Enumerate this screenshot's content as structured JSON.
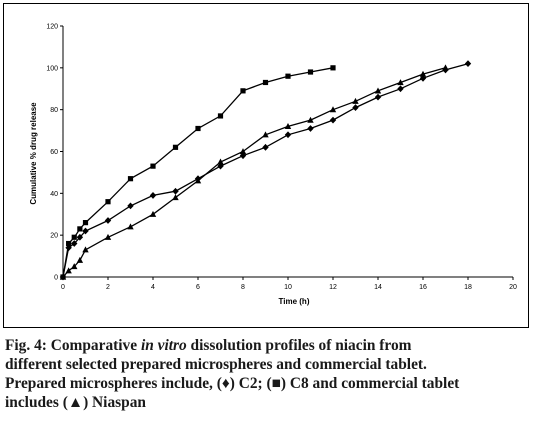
{
  "chart_data": {
    "type": "line",
    "xlabel": "Time (h)",
    "ylabel": "Cumulative % drug release",
    "xlim": [
      0,
      20
    ],
    "ylim": [
      0,
      120
    ],
    "x_ticks": [
      0,
      2,
      4,
      6,
      8,
      10,
      12,
      14,
      16,
      18,
      20
    ],
    "y_ticks": [
      0,
      20,
      40,
      60,
      80,
      100,
      120
    ],
    "grid": false,
    "series": [
      {
        "name": "C2",
        "marker": "diamond",
        "x": [
          0,
          0.25,
          0.5,
          0.75,
          1,
          2,
          3,
          4,
          5,
          6,
          7,
          8,
          9,
          10,
          11,
          12,
          13,
          14,
          15,
          16,
          17,
          18
        ],
        "y": [
          0,
          14,
          16,
          19,
          22,
          27,
          34,
          39,
          41,
          47,
          53,
          58,
          62,
          68,
          71,
          75,
          81,
          86,
          90,
          95,
          99,
          102
        ]
      },
      {
        "name": "C8",
        "marker": "square",
        "x": [
          0,
          0.25,
          0.5,
          0.75,
          1,
          2,
          3,
          4,
          5,
          6,
          7,
          8,
          9,
          10,
          11,
          12
        ],
        "y": [
          0,
          16,
          19,
          23,
          26,
          36,
          47,
          53,
          62,
          71,
          77,
          89,
          93,
          96,
          98,
          100
        ]
      },
      {
        "name": "Niaspan",
        "marker": "triangle",
        "x": [
          0,
          0.25,
          0.5,
          0.75,
          1,
          2,
          3,
          4,
          5,
          6,
          7,
          8,
          9,
          10,
          11,
          12,
          13,
          14,
          15,
          16,
          17
        ],
        "y": [
          0,
          3,
          5,
          8,
          13,
          19,
          24,
          30,
          38,
          46,
          55,
          60,
          68,
          72,
          75,
          80,
          84,
          89,
          93,
          97,
          100
        ]
      }
    ]
  },
  "caption": {
    "line1_pre": "Fig. 4: Comparative ",
    "line1_ital": "in vitro",
    "line1_post": " dissolution profiles of niacin from",
    "line2": "different selected prepared microspheres and commercial tablet.",
    "line3": "Prepared microspheres include, (♦) C2; (■) C8 and commercial tablet",
    "line4": "includes (▲) Niaspan"
  },
  "colors": {
    "series_stroke": "#000000",
    "caption_text": "#1a1a1a"
  }
}
